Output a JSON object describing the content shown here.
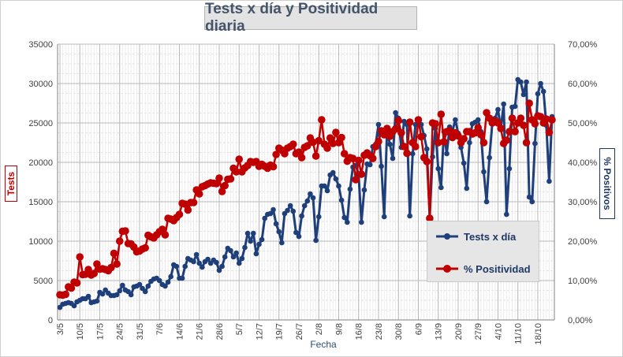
{
  "chart_data": {
    "type": "line",
    "title": "Tests x día y Positividad diaria",
    "xlabel": "Fecha",
    "ylabel_left": "Tests",
    "ylabel_right": "% Positivos",
    "y_left_lim": [
      0,
      35000
    ],
    "y_left_ticks": [
      "0",
      "5000",
      "10000",
      "15000",
      "20000",
      "25000",
      "30000",
      "35000"
    ],
    "y_right_lim": [
      0,
      70
    ],
    "y_right_ticks": [
      "0,00%",
      "10,00%",
      "20,00%",
      "30,00%",
      "40,00%",
      "50,00%",
      "60,00%",
      "70,00%"
    ],
    "x_tick_labels": [
      "3/5",
      "10/5",
      "17/5",
      "24/5",
      "31/5",
      "7/6",
      "14/6",
      "21/6",
      "28/6",
      "5/7",
      "12/7",
      "19/7",
      "26/7",
      "2/8",
      "9/8",
      "16/8",
      "23/8",
      "30/8",
      "6/9",
      "13/9",
      "20/9",
      "27/9",
      "4/10",
      "11/10",
      "18/10"
    ],
    "colors": {
      "tests": "#1f3f7a",
      "positividad": "#c00000",
      "grid": "#d9d9d9"
    },
    "legend": [
      "Tests x día",
      "% Positividad"
    ],
    "series": [
      {
        "name": "Tests x día",
        "axis": "left",
        "values": [
          1600,
          2000,
          2100,
          2200,
          2100,
          1800,
          2300,
          2500,
          2700,
          2700,
          3000,
          2200,
          2300,
          2400,
          3500,
          3300,
          3800,
          3400,
          3100,
          3100,
          3200,
          3700,
          4400,
          3800,
          3600,
          3200,
          4200,
          4300,
          4500,
          4000,
          3600,
          4300,
          4900,
          5200,
          5300,
          5000,
          4500,
          4300,
          4800,
          5500,
          7000,
          6800,
          5300,
          5300,
          6800,
          7800,
          7600,
          7400,
          8300,
          7200,
          6700,
          7400,
          7700,
          7200,
          7600,
          7300,
          6300,
          6800,
          8000,
          9100,
          8800,
          8000,
          8500,
          7200,
          7800,
          9200,
          11000,
          10000,
          11000,
          8400,
          9600,
          10200,
          12900,
          13400,
          13500,
          14000,
          12200,
          11200,
          9800,
          13500,
          13900,
          14500,
          13800,
          11100,
          10600,
          13200,
          14500,
          15100,
          16000,
          15500,
          10100,
          13100,
          17000,
          17000,
          16400,
          18400,
          18700,
          17900,
          17000,
          15200,
          13000,
          12400,
          16600,
          19400,
          19600,
          18500,
          12400,
          16500,
          19800,
          19700,
          22000,
          22300,
          24800,
          19500,
          13100,
          24100,
          22300,
          20500,
          26300,
          25600,
          21900,
          25200,
          24800,
          13200,
          21100,
          24800,
          25500,
          24800,
          23400,
          21700,
          13000,
          20700,
          24300,
          19200,
          16800,
          23900,
          21100,
          24500,
          24000,
          25400,
          23700,
          21900,
          19900,
          16700,
          22500,
          24900,
          25100,
          25400,
          23900,
          18800,
          15000,
          20600,
          25000,
          25600,
          26700,
          24300,
          27400,
          13400,
          19200,
          27000,
          27100,
          30500,
          30200,
          28600,
          30200,
          15600,
          15000,
          22400,
          28700,
          30000,
          29000,
          24700,
          17600,
          25800
        ]
      },
      {
        "name": "% Positividad",
        "axis": "right",
        "values": [
          6.4,
          6.3,
          6.5,
          8.4,
          8.1,
          9.6,
          9.4,
          16.0,
          11.5,
          11.6,
          12.8,
          11.4,
          11.8,
          14.2,
          12.9,
          13.0,
          12.8,
          12.5,
          13.3,
          16.9,
          14.2,
          20.0,
          22.5,
          22.6,
          19.4,
          19.3,
          18.5,
          17.3,
          17.5,
          18.0,
          18.3,
          21.5,
          21.1,
          20.8,
          21.6,
          22.4,
          23.0,
          21.6,
          25.8,
          25.6,
          25.2,
          26.0,
          26.8,
          29.6,
          29.4,
          27.9,
          29.8,
          29.8,
          33.0,
          32.0,
          33.8,
          34.1,
          34.5,
          34.8,
          34.7,
          34.6,
          36.0,
          32.6,
          34.1,
          35.7,
          35.8,
          38.5,
          37.6,
          40.8,
          37.6,
          38.6,
          39.2,
          40.2,
          40.0,
          40.2,
          39.0,
          39.5,
          39.0,
          38.5,
          39.3,
          38.9,
          42.0,
          43.6,
          43.1,
          42.2,
          43.6,
          44.0,
          44.6,
          42.2,
          42.6,
          41.2,
          43.8,
          44.2,
          46.2,
          45.1,
          41.6,
          45.5,
          50.8,
          44.6,
          43.6,
          46.2,
          44.8,
          47.6,
          45.0,
          46.3,
          42.2,
          40.3,
          41.2,
          41.0,
          35.6,
          40.5,
          37.0,
          41.8,
          42.4,
          41.7,
          41.0,
          44.0,
          45.3,
          48.0,
          47.0,
          48.6,
          46.6,
          47.8,
          48.5,
          50.6,
          47.5,
          44.0,
          42.3,
          50.2,
          45.0,
          44.0,
          50.8,
          46.5,
          41.2,
          40.2,
          25.8,
          50.0,
          49.8,
          45.0,
          52.2,
          45.2,
          47.8,
          48.0,
          46.3,
          47.5,
          46.7,
          45.0,
          46.0,
          47.8,
          47.8,
          47.2,
          47.5,
          48.8,
          47.0,
          45.0,
          52.6,
          51.2,
          50.0,
          50.5,
          50.0,
          48.6,
          44.8,
          45.6,
          47.8,
          51.2,
          47.8,
          50.0,
          51.2,
          49.4,
          45.0,
          55.0,
          50.8,
          49.8,
          51.8,
          51.6,
          50.0,
          51.0,
          47.6,
          50.8
        ]
      }
    ]
  }
}
